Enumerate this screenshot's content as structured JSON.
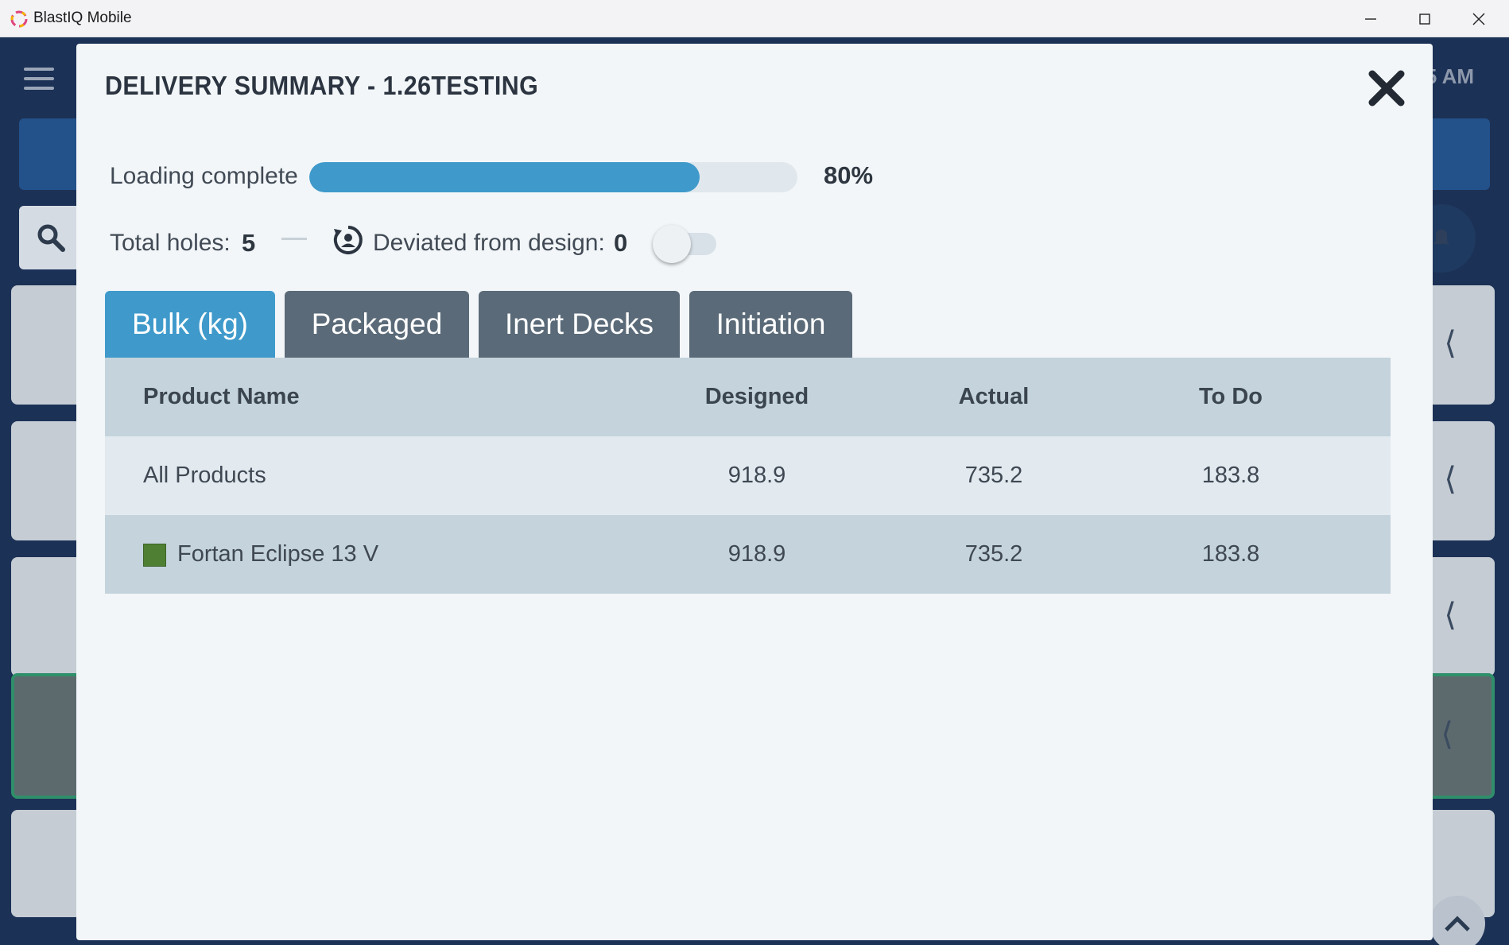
{
  "window": {
    "title": "BlastIQ Mobile",
    "controls": [
      "minimize",
      "maximize",
      "close"
    ]
  },
  "background": {
    "time_fragment": "5 AM"
  },
  "modal": {
    "title": "DELIVERY SUMMARY - 1.26TESTING",
    "progress": {
      "label": "Loading complete",
      "value_text": "80%",
      "value": 0.8,
      "fill_color": "#3f9acb"
    },
    "holes": {
      "total_label": "Total holes:",
      "total_value": "5",
      "deviated_label": "Deviated from design:",
      "deviated_value": "0",
      "toggle_on": false
    },
    "tabs": [
      {
        "label": "Bulk (kg)",
        "active": true
      },
      {
        "label": "Packaged",
        "active": false
      },
      {
        "label": "Inert Decks",
        "active": false
      },
      {
        "label": "Initiation",
        "active": false
      }
    ],
    "table": {
      "headers": [
        "Product Name",
        "Designed",
        "Actual",
        "To Do"
      ],
      "rows": [
        {
          "name": "All Products",
          "designed": "918.9",
          "actual": "735.2",
          "todo": "183.8"
        },
        {
          "name": "Fortan Eclipse 13 V",
          "designed": "918.9",
          "actual": "735.2",
          "todo": "183.8",
          "swatch_color": "#4f7f33"
        }
      ]
    }
  },
  "colors": {
    "accent": "#3f9acb",
    "tab_inactive": "#5a6a78",
    "app_background": "#1c3156"
  }
}
